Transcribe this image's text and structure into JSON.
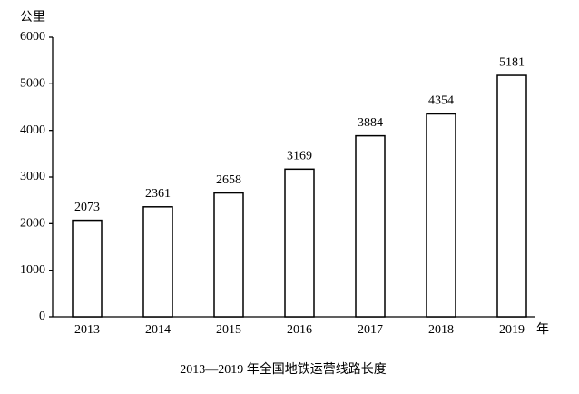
{
  "chart_data": {
    "type": "bar",
    "title": "2013—2019 年全国地铁运营线路长度",
    "y_label": "公里",
    "x_label": "年",
    "categories": [
      "2013",
      "2014",
      "2015",
      "2016",
      "2017",
      "2018",
      "2019"
    ],
    "values": [
      2073,
      2361,
      2658,
      3169,
      3884,
      4354,
      5181
    ],
    "color": "#ffffff",
    "edge_color": "#000000",
    "ylim": [
      0,
      6000
    ],
    "yticks": [
      0,
      1000,
      2000,
      3000,
      4000,
      5000,
      6000
    ],
    "grid": false
  }
}
